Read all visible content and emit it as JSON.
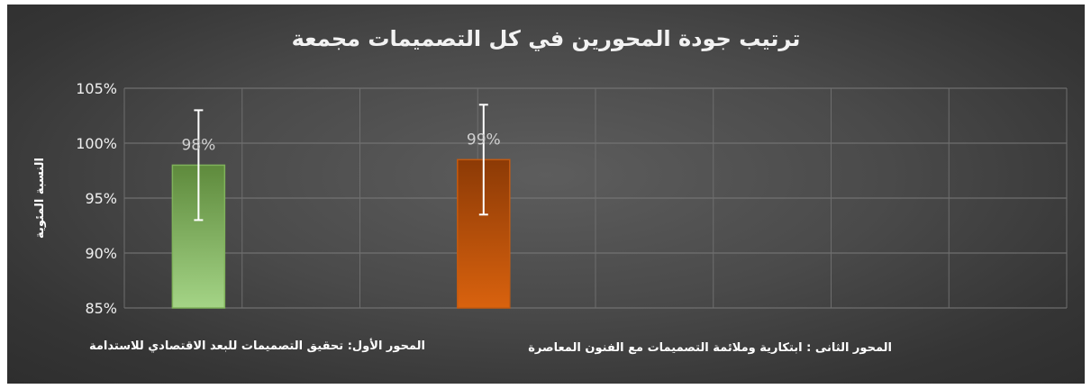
{
  "chart_data": {
    "type": "bar",
    "title": "ترتيب جودة المحورين في كل التصميمات مجمعة",
    "ylabel": "النسبة المئوية",
    "xlabel": "",
    "ylim": [
      85,
      105
    ],
    "yticks": [
      "85%",
      "90%",
      "95%",
      "100%",
      "105%"
    ],
    "ytick_values": [
      85,
      90,
      95,
      100,
      105
    ],
    "grid": true,
    "categories": [
      "المحور الأول: تحقيق التصميمات للبعد الاقتصادي للاستدامة",
      "المحور الثانى : ابتكارية وملائمة التصميمات مع الفنون المعاصرة"
    ],
    "values": [
      98,
      98.5
    ],
    "data_labels": [
      "98%",
      "99%"
    ],
    "error_bars": [
      {
        "low": 93,
        "high": 103
      },
      {
        "low": 93.5,
        "high": 103.5
      }
    ],
    "colors": [
      "#7fb25a",
      "#c45a10"
    ]
  }
}
